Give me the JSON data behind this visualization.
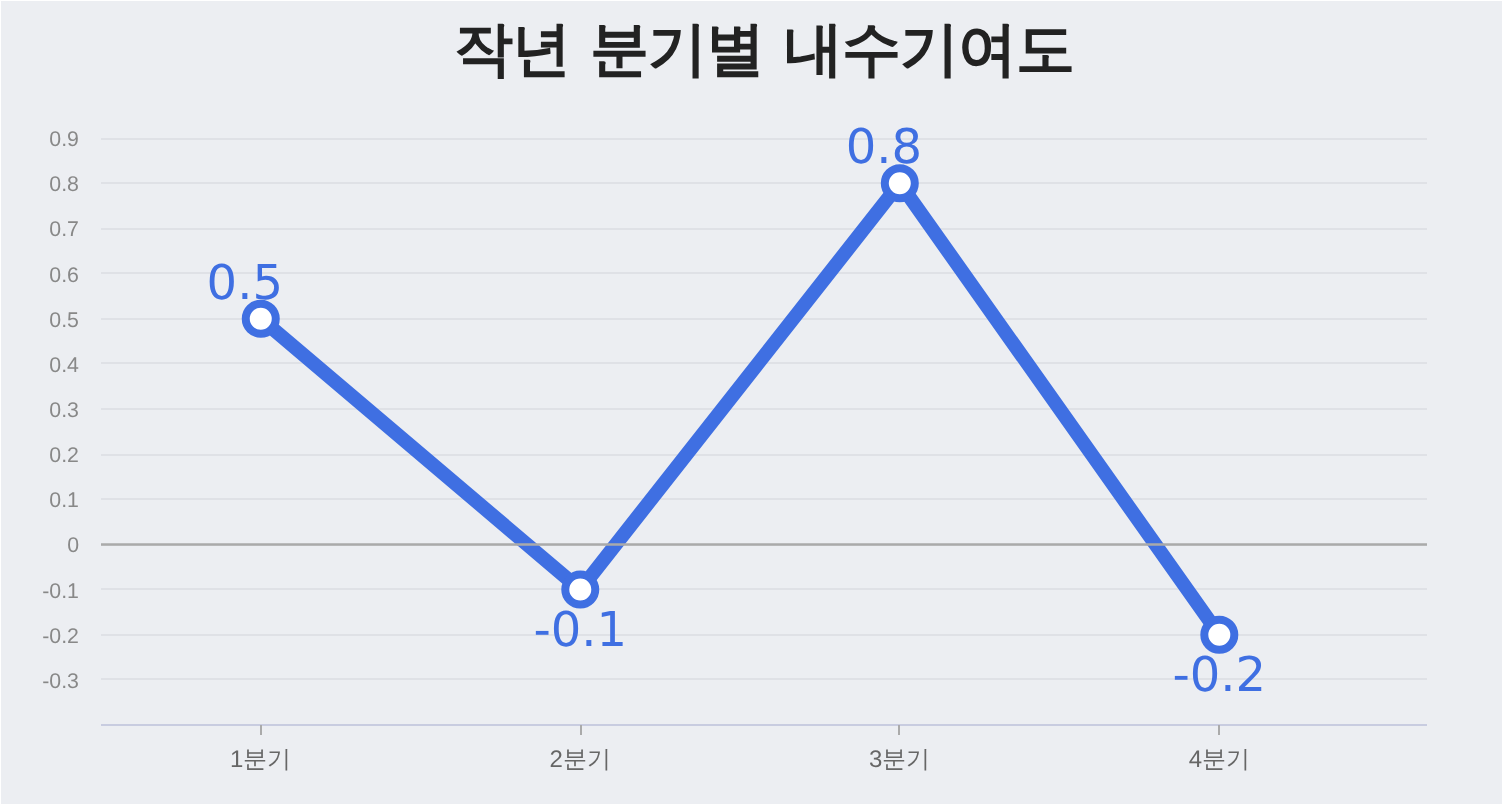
{
  "chart_data": {
    "type": "line",
    "title": "작년 분기별 내수기여도",
    "categories": [
      "1분기",
      "2분기",
      "3분기",
      "4분기"
    ],
    "series": [
      {
        "color": "#3f6fe2",
        "values": [
          0.5,
          -0.1,
          0.8,
          -0.2
        ]
      }
    ],
    "ylim": [
      -0.4,
      1.0
    ],
    "yticks": [
      -0.3,
      -0.2,
      -0.1,
      0,
      0.1,
      0.2,
      0.3,
      0.4,
      0.5,
      0.6,
      0.7,
      0.8,
      0.9
    ],
    "grid": "y",
    "marker": "circle",
    "line_style": "solid",
    "data_labels": true
  }
}
